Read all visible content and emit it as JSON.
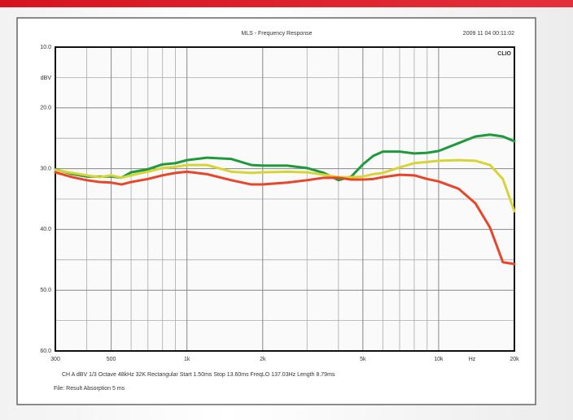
{
  "chart_data": {
    "type": "line",
    "title": "MLS - Frequency Response",
    "timestamp": "2009 11 04 00:11:02",
    "brand": "CLIO",
    "y_unit": "dBV",
    "x_unit": "Hz",
    "footer": [
      "CH A   dBV   1/3 Octave   48kHz   32K   Rectangular   Start 1.50ms   Stop 13.60ms   FreqLO 137.03Hz   Length 8.79ms",
      "File: Result Absorption 5 ms"
    ],
    "xscale": "log",
    "xlim": [
      300,
      20000
    ],
    "xticks": [
      {
        "value": 300,
        "label": "300"
      },
      {
        "value": 500,
        "label": "500"
      },
      {
        "value": 1000,
        "label": "1k"
      },
      {
        "value": 2000,
        "label": "2k"
      },
      {
        "value": 5000,
        "label": "5k"
      },
      {
        "value": 10000,
        "label": "10k"
      },
      {
        "value": 20000,
        "label": "20k"
      }
    ],
    "minor_xticks": [
      400,
      600,
      700,
      800,
      900,
      3000,
      4000,
      6000,
      7000,
      8000,
      9000
    ],
    "ylim": [
      60,
      10
    ],
    "yticks": [
      {
        "value": 10,
        "label": "10.0"
      },
      {
        "value": 20,
        "label": "20.0"
      },
      {
        "value": 30,
        "label": "30.0"
      },
      {
        "value": 40,
        "label": "40.0"
      },
      {
        "value": 50,
        "label": "50.0"
      },
      {
        "value": 60,
        "label": "60.0"
      }
    ],
    "minor_yticks": [
      15,
      25,
      35,
      45,
      55
    ],
    "grid": true,
    "x": [
      300,
      350,
      400,
      450,
      500,
      550,
      600,
      700,
      800,
      900,
      1000,
      1200,
      1500,
      1800,
      2000,
      2500,
      3000,
      3500,
      4000,
      4500,
      5000,
      5500,
      6000,
      7000,
      8000,
      9000,
      10000,
      12000,
      14000,
      16000,
      18000,
      20000
    ],
    "series": [
      {
        "color": "#1e9a3c",
        "values": [
          30.1,
          30.9,
          31.3,
          31.3,
          31.3,
          31.5,
          30.6,
          30.1,
          29.3,
          29.1,
          28.6,
          28.2,
          28.4,
          29.4,
          29.5,
          29.5,
          29.9,
          30.7,
          31.9,
          31.3,
          29.3,
          27.9,
          27.2,
          27.2,
          27.5,
          27.4,
          27.1,
          25.8,
          24.7,
          24.4,
          24.7,
          25.5
        ]
      },
      {
        "color": "#d8d436",
        "values": [
          30.2,
          30.7,
          31.1,
          31.4,
          31.1,
          31.5,
          31.1,
          30.5,
          29.9,
          29.7,
          29.4,
          29.4,
          30.5,
          30.7,
          30.6,
          30.5,
          30.6,
          31.0,
          31.4,
          31.4,
          31.3,
          30.9,
          30.7,
          29.8,
          29.1,
          28.9,
          28.7,
          28.6,
          28.7,
          29.4,
          31.7,
          37.0
        ]
      },
      {
        "color": "#e8452a",
        "values": [
          30.6,
          31.4,
          31.9,
          32.2,
          32.3,
          32.6,
          32.2,
          31.7,
          31.1,
          30.7,
          30.5,
          30.9,
          31.9,
          32.6,
          32.6,
          32.3,
          31.9,
          31.5,
          31.5,
          31.8,
          31.8,
          31.7,
          31.4,
          31.0,
          31.1,
          31.7,
          32.1,
          33.3,
          35.7,
          39.7,
          45.4,
          45.7
        ]
      }
    ]
  }
}
